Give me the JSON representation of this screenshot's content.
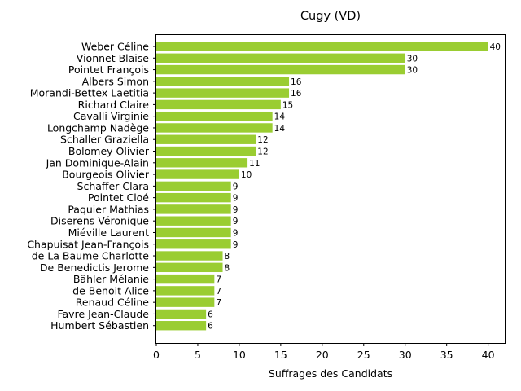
{
  "chart_data": {
    "type": "bar",
    "orientation": "horizontal",
    "title": "Cugy (VD)",
    "xlabel": "Suffrages des Candidats",
    "ylabel": "",
    "xlim": [
      0,
      42
    ],
    "xticks": [
      0,
      5,
      10,
      15,
      20,
      25,
      30,
      35,
      40
    ],
    "bar_color": "#9acd32",
    "grid": false,
    "categories": [
      "Weber Céline",
      "Vionnet Blaise",
      "Pointet François",
      "Albers Simon",
      "Morandi-Bettex Laetitia",
      "Richard Claire",
      "Cavalli Virginie",
      "Longchamp Nadège",
      "Schaller Graziella",
      "Bolomey Olivier",
      "Jan Dominique-Alain",
      "Bourgeois Olivier",
      "Schaffer Clara",
      "Pointet Cloé",
      "Paquier Mathias",
      "Diserens Véronique",
      "Miéville Laurent",
      "Chapuisat Jean-François",
      "de La Baume Charlotte",
      "De Benedictis Jerome",
      "Bähler Mélanie",
      "de Benoit Alice",
      "Renaud Céline",
      "Favre Jean-Claude",
      "Humbert Sébastien"
    ],
    "values": [
      40,
      30,
      30,
      16,
      16,
      15,
      14,
      14,
      12,
      12,
      11,
      10,
      9,
      9,
      9,
      9,
      9,
      9,
      8,
      8,
      7,
      7,
      7,
      6,
      6
    ]
  }
}
